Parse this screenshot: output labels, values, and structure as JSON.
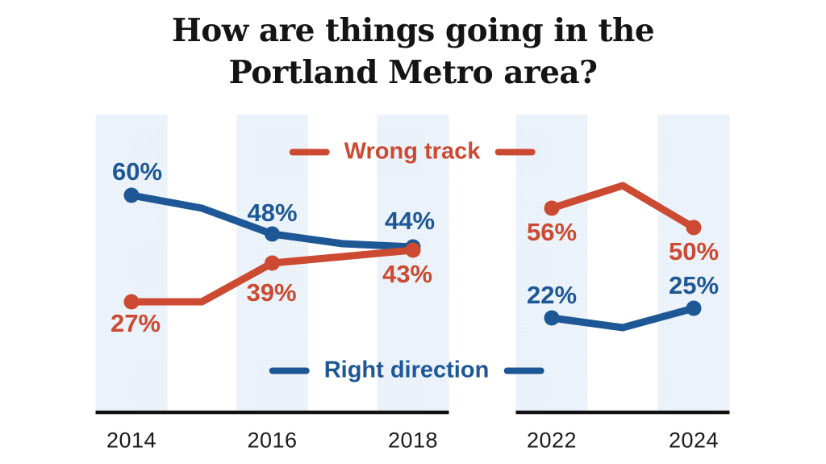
{
  "title": {
    "line1": "How are things going in the",
    "line2": "Portland Metro area?"
  },
  "legend": {
    "wrong_track": "Wrong track",
    "right_direction": "Right direction"
  },
  "colors": {
    "wrong_track": "#cc4a31",
    "right_direction": "#1e5795",
    "band_base": "#edf3fa",
    "band_dot": "#e1ebf6",
    "axis": "#121212",
    "title_text": "#141414",
    "year_text": "#1a1a1a",
    "background": "#ffffff"
  },
  "chart_data": {
    "type": "line",
    "title": "How are things going in the Portland Metro area?",
    "xlabel": "",
    "ylabel": "",
    "grid": false,
    "value_format": "percent",
    "legend_position": {
      "wrong_track": "top-center",
      "right_direction": "bottom-center"
    },
    "panels": [
      {
        "name": "left",
        "x": [
          2014,
          2015,
          2016,
          2017,
          2018
        ],
        "tick_years": [
          2014,
          2016,
          2018
        ],
        "series": [
          {
            "id": "right_direction",
            "name": "Right direction",
            "values": [
              60,
              56,
              48,
              45,
              44
            ],
            "labels": {
              "2014": "60%",
              "2016": "48%",
              "2018": "44%"
            }
          },
          {
            "id": "wrong_track",
            "name": "Wrong track",
            "values": [
              27,
              27,
              39,
              41,
              43
            ],
            "labels": {
              "2014": "27%",
              "2016": "39%",
              "2018": "43%"
            }
          }
        ]
      },
      {
        "name": "right",
        "x": [
          2022,
          2023,
          2024
        ],
        "tick_years": [
          2022,
          2024
        ],
        "series": [
          {
            "id": "right_direction",
            "name": "Right direction",
            "values": [
              22,
              19,
              25
            ],
            "labels": {
              "2022": "22%",
              "2024": "25%"
            }
          },
          {
            "id": "wrong_track",
            "name": "Wrong track",
            "values": [
              56,
              63,
              50
            ],
            "labels": {
              "2022": "56%",
              "2024": "50%"
            }
          }
        ]
      }
    ]
  }
}
